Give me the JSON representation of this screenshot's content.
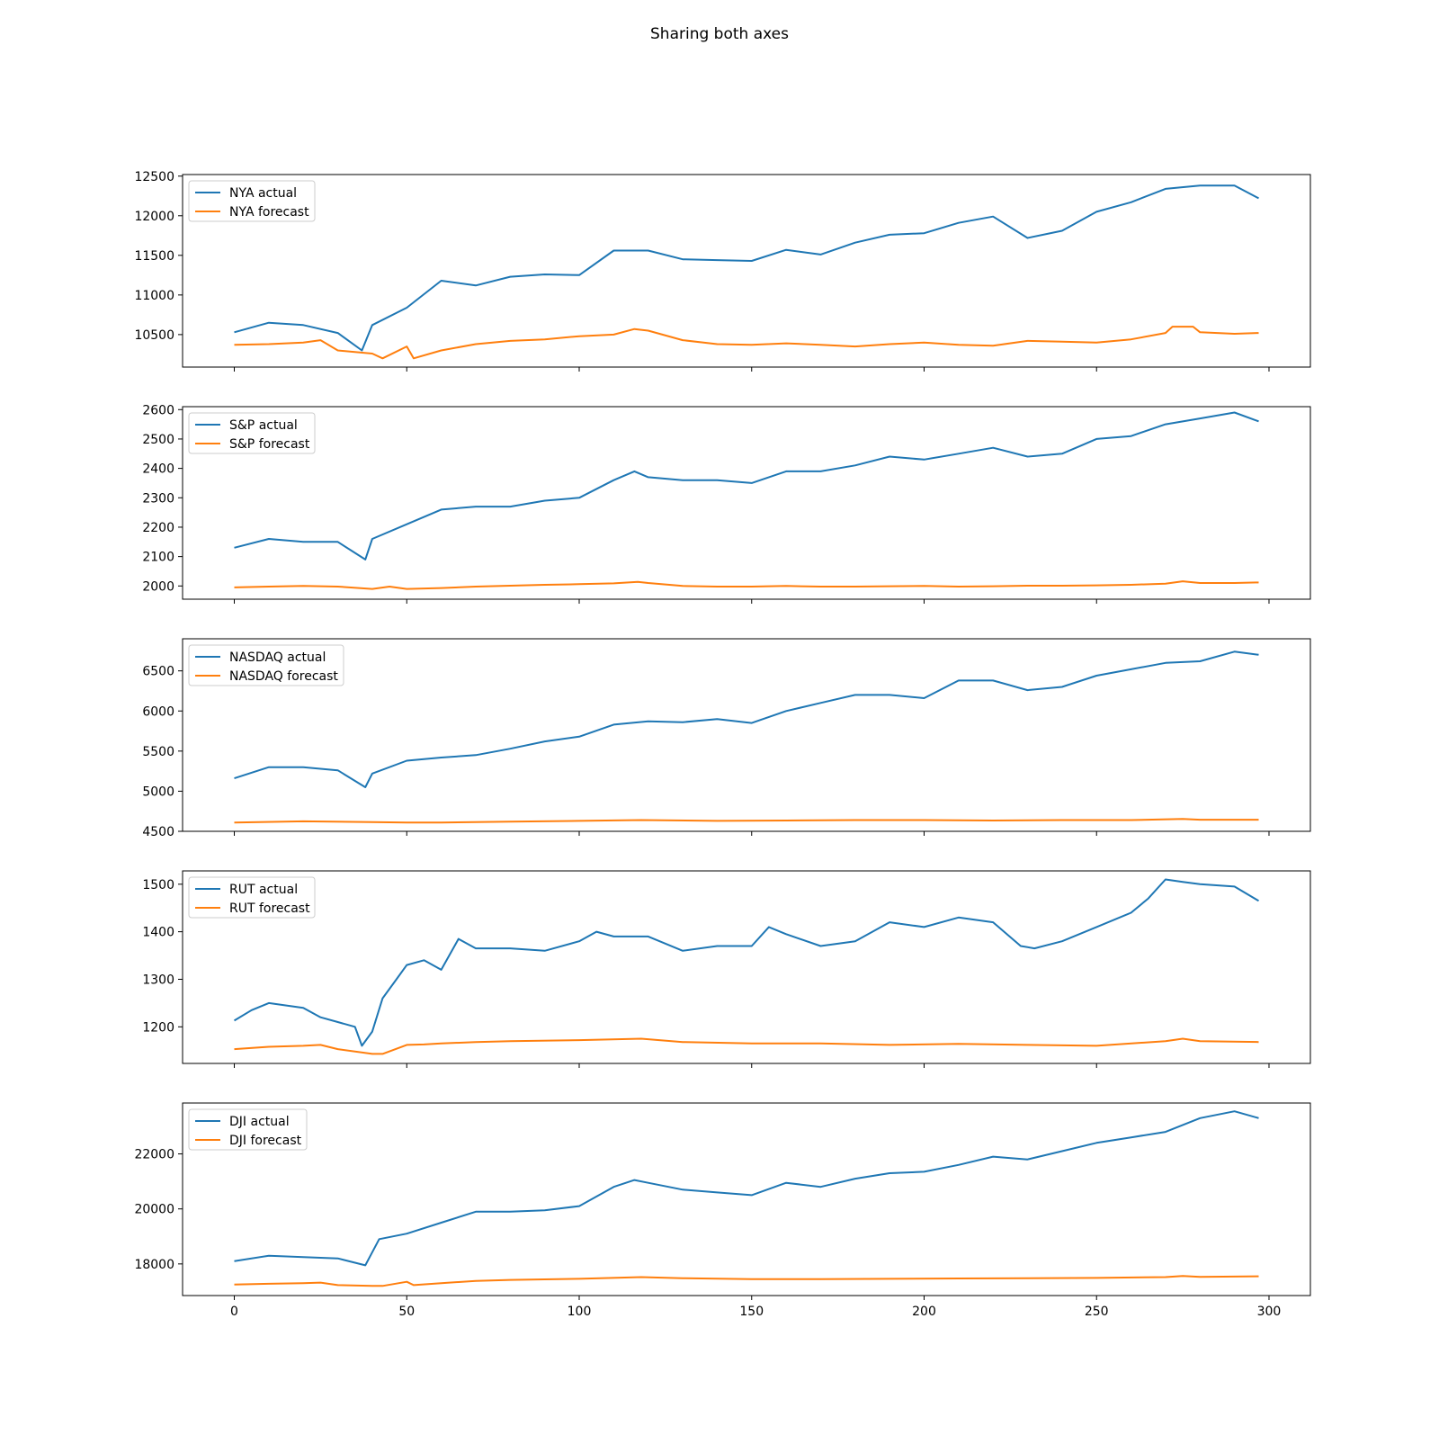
{
  "figure": {
    "title": "Sharing both axes"
  },
  "chart_data": [
    {
      "type": "line",
      "xlim": [
        -15,
        312
      ],
      "ylim": [
        10090,
        12520
      ],
      "xticks": [
        0,
        50,
        100,
        150,
        200,
        250,
        300
      ],
      "yticks": [
        10500,
        11000,
        11500,
        12000,
        12500
      ],
      "legend_position": "upper left",
      "series": [
        {
          "name": "NYA actual",
          "color": "#1f77b4",
          "x": [
            0,
            10,
            20,
            30,
            37,
            40,
            50,
            60,
            70,
            80,
            90,
            100,
            110,
            120,
            130,
            140,
            150,
            160,
            170,
            180,
            190,
            200,
            210,
            220,
            230,
            240,
            250,
            260,
            270,
            280,
            290,
            297
          ],
          "y": [
            10530,
            10650,
            10620,
            10520,
            10300,
            10620,
            10840,
            11180,
            11120,
            11230,
            11260,
            11250,
            11560,
            11560,
            11450,
            11440,
            11430,
            11570,
            11510,
            11660,
            11760,
            11780,
            11910,
            11990,
            11720,
            11810,
            12050,
            12170,
            12340,
            12380,
            12380,
            12220
          ]
        },
        {
          "name": "NYA forecast",
          "color": "#ff7f0e",
          "x": [
            0,
            10,
            20,
            25,
            30,
            40,
            43,
            50,
            52,
            60,
            70,
            80,
            90,
            100,
            110,
            116,
            120,
            130,
            140,
            150,
            160,
            170,
            180,
            190,
            200,
            210,
            220,
            230,
            240,
            250,
            260,
            270,
            272,
            278,
            280,
            290,
            297
          ],
          "y": [
            10370,
            10380,
            10400,
            10430,
            10300,
            10260,
            10200,
            10350,
            10200,
            10300,
            10380,
            10420,
            10440,
            10480,
            10500,
            10570,
            10550,
            10430,
            10380,
            10370,
            10390,
            10370,
            10350,
            10380,
            10400,
            10370,
            10360,
            10420,
            10410,
            10400,
            10440,
            10520,
            10600,
            10600,
            10530,
            10510,
            10520
          ]
        }
      ]
    },
    {
      "type": "line",
      "xlim": [
        -15,
        312
      ],
      "ylim": [
        1955,
        2610
      ],
      "xticks": [
        0,
        50,
        100,
        150,
        200,
        250,
        300
      ],
      "yticks": [
        2000,
        2100,
        2200,
        2300,
        2400,
        2500,
        2600
      ],
      "legend_position": "upper left",
      "series": [
        {
          "name": "S&P actual",
          "color": "#1f77b4",
          "x": [
            0,
            10,
            20,
            30,
            38,
            40,
            50,
            60,
            70,
            80,
            90,
            100,
            110,
            116,
            120,
            130,
            140,
            150,
            160,
            170,
            180,
            190,
            200,
            210,
            220,
            230,
            240,
            250,
            260,
            270,
            280,
            290,
            297
          ],
          "y": [
            2130,
            2160,
            2150,
            2150,
            2090,
            2160,
            2210,
            2260,
            2270,
            2270,
            2290,
            2300,
            2360,
            2390,
            2370,
            2360,
            2360,
            2350,
            2390,
            2390,
            2410,
            2440,
            2430,
            2450,
            2470,
            2440,
            2450,
            2500,
            2510,
            2550,
            2570,
            2590,
            2560
          ]
        },
        {
          "name": "S&P forecast",
          "color": "#ff7f0e",
          "x": [
            0,
            10,
            20,
            30,
            40,
            45,
            50,
            60,
            70,
            80,
            90,
            100,
            110,
            117,
            120,
            130,
            140,
            150,
            160,
            170,
            180,
            190,
            200,
            210,
            220,
            230,
            240,
            250,
            260,
            270,
            275,
            280,
            290,
            297
          ],
          "y": [
            1995,
            1998,
            2000,
            1998,
            1990,
            1998,
            1990,
            1993,
            1998,
            2001,
            2004,
            2006,
            2009,
            2014,
            2010,
            2000,
            1998,
            1998,
            2000,
            1998,
            1998,
            1999,
            2000,
            1998,
            1999,
            2001,
            2001,
            2002,
            2004,
            2008,
            2016,
            2010,
            2010,
            2012
          ]
        }
      ]
    },
    {
      "type": "line",
      "xlim": [
        -15,
        312
      ],
      "ylim": [
        4500,
        6900
      ],
      "xticks": [
        0,
        50,
        100,
        150,
        200,
        250,
        300
      ],
      "yticks": [
        4500,
        5000,
        5500,
        6000,
        6500
      ],
      "legend_position": "upper left",
      "series": [
        {
          "name": "NASDAQ actual",
          "color": "#1f77b4",
          "x": [
            0,
            10,
            20,
            30,
            38,
            40,
            50,
            60,
            70,
            80,
            90,
            100,
            110,
            120,
            130,
            140,
            150,
            160,
            170,
            180,
            190,
            200,
            210,
            220,
            230,
            240,
            250,
            260,
            270,
            280,
            290,
            297
          ],
          "y": [
            5160,
            5300,
            5300,
            5260,
            5050,
            5220,
            5380,
            5420,
            5450,
            5530,
            5620,
            5680,
            5830,
            5870,
            5860,
            5900,
            5850,
            6000,
            6100,
            6200,
            6200,
            6160,
            6380,
            6380,
            6260,
            6300,
            6440,
            6520,
            6600,
            6620,
            6740,
            6700
          ]
        },
        {
          "name": "NASDAQ forecast",
          "color": "#ff7f0e",
          "x": [
            0,
            20,
            40,
            50,
            60,
            80,
            100,
            118,
            140,
            160,
            180,
            200,
            220,
            240,
            260,
            275,
            280,
            297
          ],
          "y": [
            4610,
            4625,
            4615,
            4610,
            4610,
            4620,
            4630,
            4640,
            4630,
            4635,
            4640,
            4640,
            4635,
            4640,
            4640,
            4655,
            4645,
            4645
          ]
        }
      ]
    },
    {
      "type": "line",
      "xlim": [
        -15,
        312
      ],
      "ylim": [
        1123,
        1528
      ],
      "xticks": [
        0,
        50,
        100,
        150,
        200,
        250,
        300
      ],
      "yticks": [
        1200,
        1300,
        1400,
        1500
      ],
      "legend_position": "upper left",
      "series": [
        {
          "name": "RUT actual",
          "color": "#1f77b4",
          "x": [
            0,
            5,
            10,
            20,
            25,
            30,
            35,
            37,
            40,
            43,
            47,
            50,
            55,
            60,
            65,
            70,
            80,
            90,
            100,
            105,
            110,
            120,
            130,
            140,
            150,
            155,
            160,
            170,
            180,
            190,
            200,
            210,
            220,
            228,
            232,
            240,
            250,
            260,
            265,
            270,
            275,
            280,
            290,
            297
          ],
          "y": [
            1213,
            1235,
            1250,
            1240,
            1220,
            1210,
            1200,
            1160,
            1190,
            1260,
            1300,
            1330,
            1340,
            1320,
            1385,
            1365,
            1365,
            1360,
            1380,
            1400,
            1390,
            1390,
            1360,
            1370,
            1370,
            1410,
            1395,
            1370,
            1380,
            1420,
            1410,
            1430,
            1420,
            1370,
            1365,
            1380,
            1410,
            1440,
            1470,
            1510,
            1505,
            1500,
            1495,
            1465
          ]
        },
        {
          "name": "RUT forecast",
          "color": "#ff7f0e",
          "x": [
            0,
            10,
            20,
            25,
            30,
            40,
            43,
            50,
            55,
            60,
            70,
            80,
            100,
            118,
            130,
            150,
            170,
            190,
            210,
            230,
            250,
            270,
            275,
            280,
            297
          ],
          "y": [
            1153,
            1158,
            1160,
            1162,
            1153,
            1143,
            1143,
            1162,
            1163,
            1165,
            1168,
            1170,
            1172,
            1175,
            1168,
            1165,
            1165,
            1162,
            1164,
            1162,
            1160,
            1170,
            1175,
            1170,
            1168
          ]
        }
      ]
    },
    {
      "type": "line",
      "xlim": [
        -15,
        312
      ],
      "ylim": [
        16850,
        23850
      ],
      "xticks": [
        0,
        50,
        100,
        150,
        200,
        250,
        300
      ],
      "yticks": [
        18000,
        20000,
        22000
      ],
      "legend_position": "upper left",
      "series": [
        {
          "name": "DJI actual",
          "color": "#1f77b4",
          "x": [
            0,
            10,
            20,
            30,
            38,
            42,
            50,
            60,
            70,
            80,
            90,
            100,
            110,
            116,
            120,
            130,
            140,
            150,
            160,
            170,
            180,
            190,
            200,
            210,
            220,
            230,
            240,
            250,
            260,
            270,
            280,
            290,
            297
          ],
          "y": [
            18100,
            18300,
            18250,
            18200,
            17950,
            18900,
            19100,
            19500,
            19900,
            19900,
            19950,
            20100,
            20800,
            21050,
            20950,
            20700,
            20600,
            20500,
            20950,
            20800,
            21100,
            21300,
            21350,
            21600,
            21900,
            21800,
            22100,
            22400,
            22600,
            22800,
            23300,
            23550,
            23300
          ]
        },
        {
          "name": "DJI forecast",
          "color": "#ff7f0e",
          "x": [
            0,
            10,
            20,
            25,
            30,
            40,
            43,
            50,
            52,
            60,
            70,
            80,
            100,
            118,
            130,
            150,
            170,
            190,
            210,
            230,
            250,
            270,
            275,
            280,
            297
          ],
          "y": [
            17250,
            17280,
            17300,
            17320,
            17230,
            17200,
            17200,
            17350,
            17230,
            17300,
            17380,
            17420,
            17460,
            17520,
            17480,
            17450,
            17450,
            17460,
            17470,
            17480,
            17490,
            17520,
            17560,
            17530,
            17550
          ]
        }
      ]
    }
  ]
}
